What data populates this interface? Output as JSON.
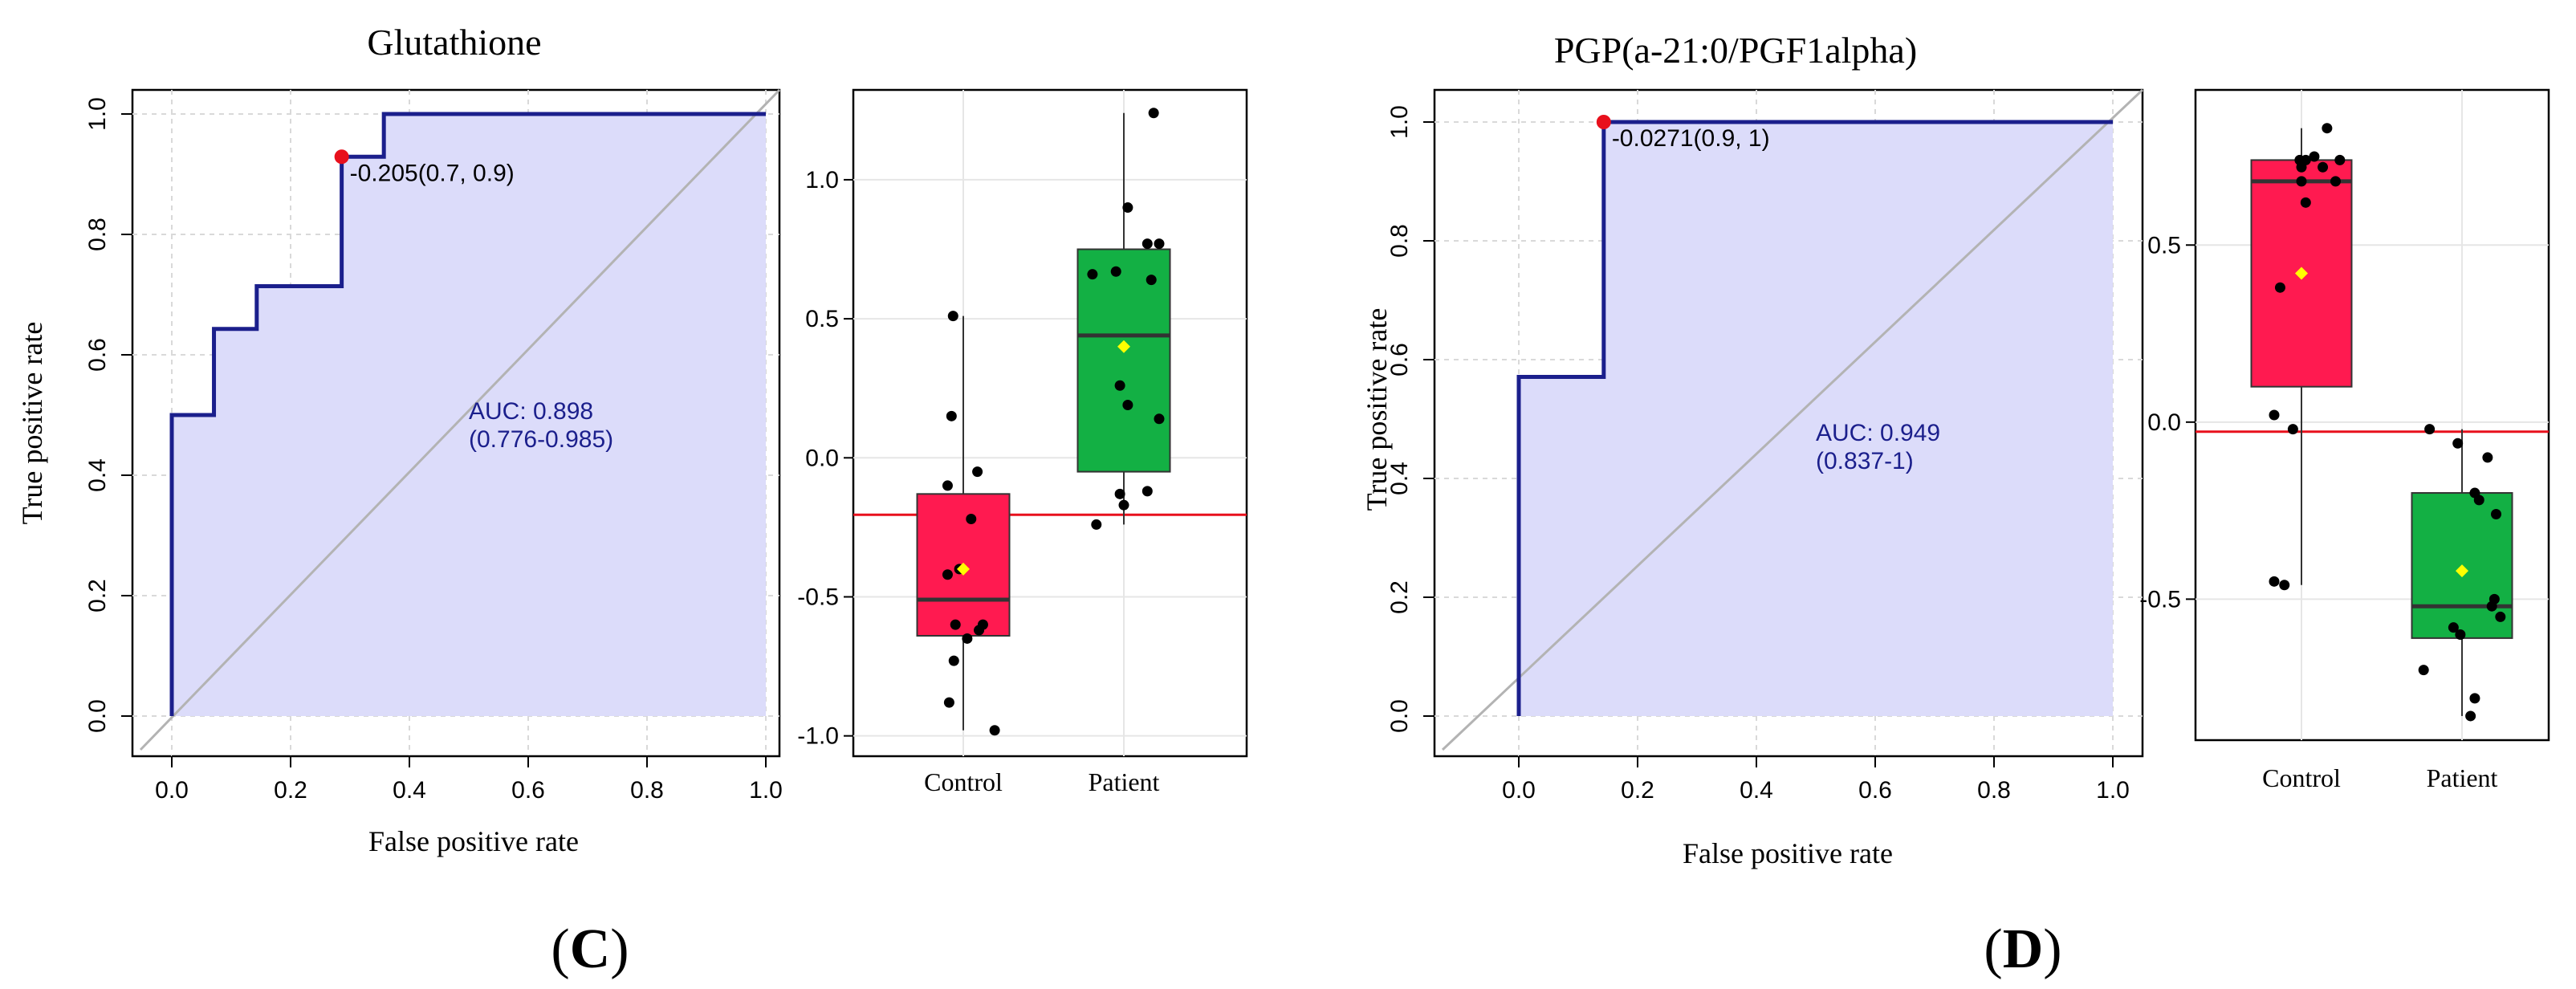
{
  "colors": {
    "roc_line": "#1b1f8c",
    "auc_fill": "#dcdcfa",
    "diagonal": "#b3b3b3",
    "grid": "#d9d9d9",
    "optimal_point": "#e8101c",
    "threshold_line": "#e8101c",
    "control_box": "#ff1a50",
    "patient_box": "#13b044",
    "mean_marker": "#ffff00",
    "jitter_point": "#000000",
    "auc_text": "#1b1f8c"
  },
  "panels": [
    {
      "label": "(C)",
      "label_letter": "C",
      "title": "Glutathione",
      "roc": {
        "xlabel": "False positive rate",
        "ylabel": "True positive rate",
        "xticks": [
          0.0,
          0.2,
          0.4,
          0.6,
          0.8,
          1.0
        ],
        "yticks": [
          0.0,
          0.2,
          0.4,
          0.6,
          0.8,
          1.0
        ],
        "xtick_labels": [
          "0.0",
          "0.2",
          "0.4",
          "0.6",
          "0.8",
          "1.0"
        ],
        "ytick_labels": [
          "0.0",
          "0.2",
          "0.4",
          "0.6",
          "0.8",
          "1.0"
        ],
        "curve": [
          [
            0,
            0
          ],
          [
            0,
            0.5
          ],
          [
            0.071,
            0.5
          ],
          [
            0.071,
            0.643
          ],
          [
            0.143,
            0.643
          ],
          [
            0.143,
            0.714
          ],
          [
            0.286,
            0.714
          ],
          [
            0.286,
            0.929
          ],
          [
            0.357,
            0.929
          ],
          [
            0.357,
            1.0
          ],
          [
            1.0,
            1.0
          ]
        ],
        "optimal_point": [
          0.286,
          0.929
        ],
        "optimal_label": "-0.205(0.7, 0.9)",
        "auc_label": "AUC: 0.898",
        "auc_ci_label": "(0.776-0.985)",
        "auc_text_pos": [
          0.5,
          0.5
        ]
      },
      "box": {
        "categories": [
          "Control",
          "Patient"
        ],
        "ylim": [
          -1.05,
          1.3
        ],
        "yticks": [
          -1.0,
          -0.5,
          0.0,
          0.5,
          1.0
        ],
        "ytick_labels": [
          "-1.0",
          "-0.5",
          "0.0",
          "0.5",
          "1.0"
        ],
        "threshold": -0.205,
        "groups": [
          {
            "name": "Control",
            "q1": -0.64,
            "median": -0.51,
            "q3": -0.13,
            "whisker_low": -0.98,
            "whisker_high": 0.51,
            "mean": -0.4,
            "points": [
              [
                -0.13,
                0.51
              ],
              [
                -0.15,
                0.15
              ],
              [
                -0.2,
                -0.1
              ],
              [
                0.18,
                -0.05
              ],
              [
                0.1,
                -0.22
              ],
              [
                -0.05,
                -0.4
              ],
              [
                -0.2,
                -0.42
              ],
              [
                0.25,
                -0.6
              ],
              [
                -0.1,
                -0.6
              ],
              [
                0.05,
                -0.65
              ],
              [
                0.2,
                -0.62
              ],
              [
                -0.12,
                -0.73
              ],
              [
                -0.18,
                -0.88
              ],
              [
                0.4,
                -0.98
              ]
            ]
          },
          {
            "name": "Patient",
            "q1": -0.05,
            "median": 0.44,
            "q3": 0.75,
            "whisker_low": -0.24,
            "whisker_high": 1.24,
            "mean": 0.4,
            "points": [
              [
                0.38,
                1.24
              ],
              [
                0.05,
                0.9
              ],
              [
                0.3,
                0.77
              ],
              [
                0.45,
                0.77
              ],
              [
                -0.1,
                0.67
              ],
              [
                -0.4,
                0.66
              ],
              [
                0.35,
                0.64
              ],
              [
                -0.05,
                0.26
              ],
              [
                0.05,
                0.19
              ],
              [
                0.45,
                0.14
              ],
              [
                -0.35,
                -0.24
              ],
              [
                0.0,
                -0.17
              ],
              [
                -0.05,
                -0.13
              ],
              [
                0.3,
                -0.12
              ]
            ]
          }
        ]
      }
    },
    {
      "label": "(D)",
      "label_letter": "D",
      "title": "PGP(a-21:0/PGF1alpha)",
      "roc": {
        "xlabel": "False positive rate",
        "ylabel": "True positive rate",
        "xticks": [
          0.0,
          0.2,
          0.4,
          0.6,
          0.8,
          1.0
        ],
        "yticks": [
          0.0,
          0.2,
          0.4,
          0.6,
          0.8,
          1.0
        ],
        "xtick_labels": [
          "0.0",
          "0.2",
          "0.4",
          "0.6",
          "0.8",
          "1.0"
        ],
        "ytick_labels": [
          "0.0",
          "0.2",
          "0.4",
          "0.6",
          "0.8",
          "1.0"
        ],
        "curve": [
          [
            0,
            0
          ],
          [
            0,
            0.571
          ],
          [
            0.143,
            0.571
          ],
          [
            0.143,
            1.0
          ],
          [
            1.0,
            1.0
          ]
        ],
        "optimal_point": [
          0.143,
          1.0
        ],
        "optimal_label": "-0.0271(0.9, 1)",
        "auc_label": "AUC: 0.949",
        "auc_ci_label": "(0.837-1)",
        "auc_text_pos": [
          0.5,
          0.47
        ]
      },
      "box": {
        "categories": [
          "Control",
          "Patient"
        ],
        "ylim": [
          -0.88,
          0.92
        ],
        "yticks": [
          -0.5,
          0.0,
          0.5
        ],
        "ytick_labels": [
          "-0.5",
          "0.0",
          "0.5"
        ],
        "threshold": -0.0271,
        "groups": [
          {
            "name": "Control",
            "q1": 0.1,
            "median": 0.68,
            "q3": 0.74,
            "whisker_low": -0.46,
            "whisker_high": 0.83,
            "mean": 0.42,
            "points": [
              [
                0.3,
                0.83
              ],
              [
                0.15,
                0.75
              ],
              [
                0.05,
                0.74
              ],
              [
                0.0,
                0.72
              ],
              [
                0.25,
                0.72
              ],
              [
                -0.02,
                0.74
              ],
              [
                0.45,
                0.74
              ],
              [
                0.0,
                0.68
              ],
              [
                0.4,
                0.68
              ],
              [
                0.05,
                0.62
              ],
              [
                -0.25,
                0.38
              ],
              [
                -0.32,
                0.02
              ],
              [
                -0.1,
                -0.02
              ],
              [
                -0.32,
                -0.45
              ],
              [
                -0.2,
                -0.46
              ]
            ]
          },
          {
            "name": "Patient",
            "q1": -0.61,
            "median": -0.52,
            "q3": -0.2,
            "whisker_low": -0.83,
            "whisker_high": -0.02,
            "mean": -0.42,
            "points": [
              [
                -0.38,
                -0.02
              ],
              [
                -0.05,
                -0.06
              ],
              [
                0.3,
                -0.1
              ],
              [
                0.15,
                -0.2
              ],
              [
                0.2,
                -0.22
              ],
              [
                0.4,
                -0.26
              ],
              [
                0.38,
                -0.5
              ],
              [
                0.35,
                -0.52
              ],
              [
                0.45,
                -0.55
              ],
              [
                -0.1,
                -0.58
              ],
              [
                -0.02,
                -0.6
              ],
              [
                -0.45,
                -0.7
              ],
              [
                0.15,
                -0.78
              ],
              [
                0.1,
                -0.83
              ]
            ]
          }
        ]
      }
    }
  ],
  "chart_data": [
    {
      "type": "line",
      "title": "Glutathione",
      "xlabel": "False positive rate",
      "ylabel": "True positive rate",
      "xlim": [
        0,
        1
      ],
      "ylim": [
        0,
        1
      ],
      "series": [
        {
          "name": "ROC",
          "x": [
            0,
            0,
            0.071,
            0.071,
            0.143,
            0.143,
            0.286,
            0.286,
            0.357,
            0.357,
            1.0
          ],
          "y": [
            0,
            0.5,
            0.5,
            0.643,
            0.643,
            0.714,
            0.714,
            0.929,
            0.929,
            1.0,
            1.0
          ]
        }
      ],
      "annotations": [
        "AUC: 0.898",
        "(0.776-0.985)",
        "-0.205(0.7, 0.9)"
      ]
    },
    {
      "type": "box",
      "title": "Glutathione",
      "categories": [
        "Control",
        "Patient"
      ],
      "ylim": [
        -1.05,
        1.3
      ],
      "series": [
        {
          "name": "Control",
          "q1": -0.64,
          "median": -0.51,
          "q3": -0.13,
          "whisker_low": -0.98,
          "whisker_high": 0.51,
          "mean": -0.4
        },
        {
          "name": "Patient",
          "q1": -0.05,
          "median": 0.44,
          "q3": 0.75,
          "whisker_low": -0.24,
          "whisker_high": 1.24,
          "mean": 0.4
        }
      ],
      "threshold": -0.205
    },
    {
      "type": "line",
      "title": "PGP(a-21:0/PGF1alpha)",
      "xlabel": "False positive rate",
      "ylabel": "True positive rate",
      "xlim": [
        0,
        1
      ],
      "ylim": [
        0,
        1
      ],
      "series": [
        {
          "name": "ROC",
          "x": [
            0,
            0,
            0.143,
            0.143,
            1.0
          ],
          "y": [
            0,
            0.571,
            0.571,
            1.0,
            1.0
          ]
        }
      ],
      "annotations": [
        "AUC: 0.949",
        "(0.837-1)",
        "-0.0271(0.9, 1)"
      ]
    },
    {
      "type": "box",
      "title": "PGP(a-21:0/PGF1alpha)",
      "categories": [
        "Control",
        "Patient"
      ],
      "ylim": [
        -0.88,
        0.92
      ],
      "series": [
        {
          "name": "Control",
          "q1": 0.1,
          "median": 0.68,
          "q3": 0.74,
          "whisker_low": -0.46,
          "whisker_high": 0.83,
          "mean": 0.42
        },
        {
          "name": "Patient",
          "q1": -0.61,
          "median": -0.52,
          "q3": -0.2,
          "whisker_low": -0.83,
          "whisker_high": -0.02,
          "mean": -0.42
        }
      ],
      "threshold": -0.0271
    }
  ]
}
